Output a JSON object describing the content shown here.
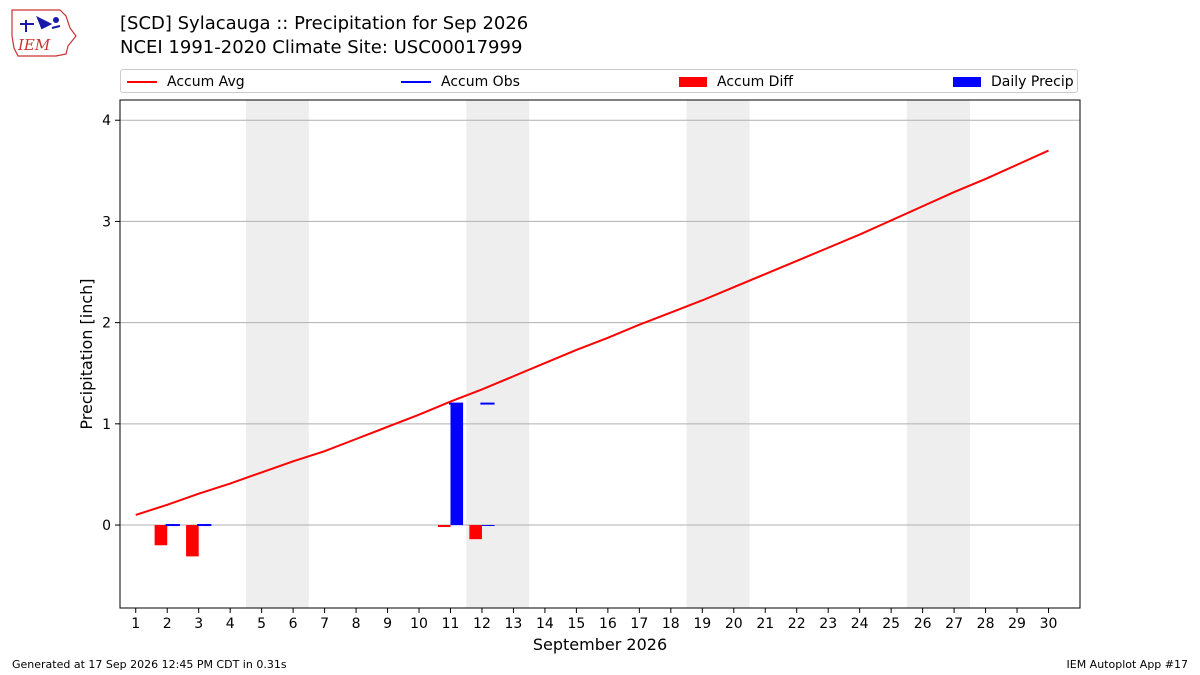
{
  "header": {
    "title_line1": "[SCD] Sylacauga :: Precipitation for Sep 2026",
    "title_line2": "NCEI 1991-2020 Climate Site: USC00017999",
    "logo_text": "IEM"
  },
  "footer": {
    "left": "Generated at 17 Sep 2026 12:45 PM CDT in 0.31s",
    "right": "IEM Autoplot App #17"
  },
  "colors": {
    "avg": "#ff0000",
    "obs": "#0000ff",
    "diff": "#ff0000",
    "daily": "#0000ff",
    "weekend": "#eeeeee",
    "grid": "#b0b0b0"
  },
  "chart_data": {
    "type": "bar",
    "title": "[SCD] Sylacauga :: Precipitation for Sep 2026",
    "subtitle": "NCEI 1991-2020 Climate Site: USC00017999",
    "xlabel": "September 2026",
    "ylabel": "Precipitation [inch]",
    "xlim": [
      0.5,
      31
    ],
    "ylim": [
      -0.82,
      4.2
    ],
    "yticks": [
      0,
      1,
      2,
      3,
      4
    ],
    "x": [
      1,
      2,
      3,
      4,
      5,
      6,
      7,
      8,
      9,
      10,
      11,
      12,
      13,
      14,
      15,
      16,
      17,
      18,
      19,
      20,
      21,
      22,
      23,
      24,
      25,
      26,
      27,
      28,
      29,
      30
    ],
    "weekend_bands": [
      [
        4.5,
        6.5
      ],
      [
        11.5,
        13.5
      ],
      [
        18.5,
        20.5
      ],
      [
        25.5,
        27.5
      ]
    ],
    "grid": "horizontal",
    "legend_position": "top",
    "series": [
      {
        "name": "Accum Avg",
        "kind": "line",
        "x": [
          1,
          2,
          3,
          4,
          5,
          6,
          7,
          8,
          9,
          10,
          11,
          12,
          13,
          14,
          15,
          16,
          17,
          18,
          19,
          20,
          21,
          22,
          23,
          24,
          25,
          26,
          27,
          28,
          29,
          30
        ],
        "values": [
          0.1,
          0.2,
          0.31,
          0.41,
          0.52,
          0.63,
          0.73,
          0.85,
          0.97,
          1.09,
          1.22,
          1.34,
          1.47,
          1.6,
          1.73,
          1.85,
          1.98,
          2.1,
          2.22,
          2.35,
          2.48,
          2.61,
          2.74,
          2.87,
          3.01,
          3.15,
          3.29,
          3.42,
          3.56,
          3.7
        ]
      },
      {
        "name": "Accum Obs",
        "kind": "line",
        "x": [
          1,
          2,
          3,
          4,
          5,
          6,
          7,
          8,
          9,
          10,
          11,
          12,
          13,
          14,
          15,
          16,
          17
        ],
        "values": [
          0,
          0,
          0,
          0,
          0,
          0,
          0,
          0,
          0,
          0,
          1.2,
          1.2,
          1.2,
          1.2,
          1.2,
          1.2,
          1.2
        ],
        "drawn_days": [
          2,
          3,
          11,
          12
        ]
      },
      {
        "name": "Accum Diff",
        "kind": "bar",
        "x": [
          2,
          3,
          11,
          12
        ],
        "values": [
          -0.2,
          -0.31,
          -0.02,
          -0.14
        ]
      },
      {
        "name": "Daily Precip",
        "kind": "bar",
        "x": [
          2,
          3,
          11,
          12
        ],
        "values": [
          0,
          0,
          1.2,
          0
        ]
      }
    ]
  }
}
